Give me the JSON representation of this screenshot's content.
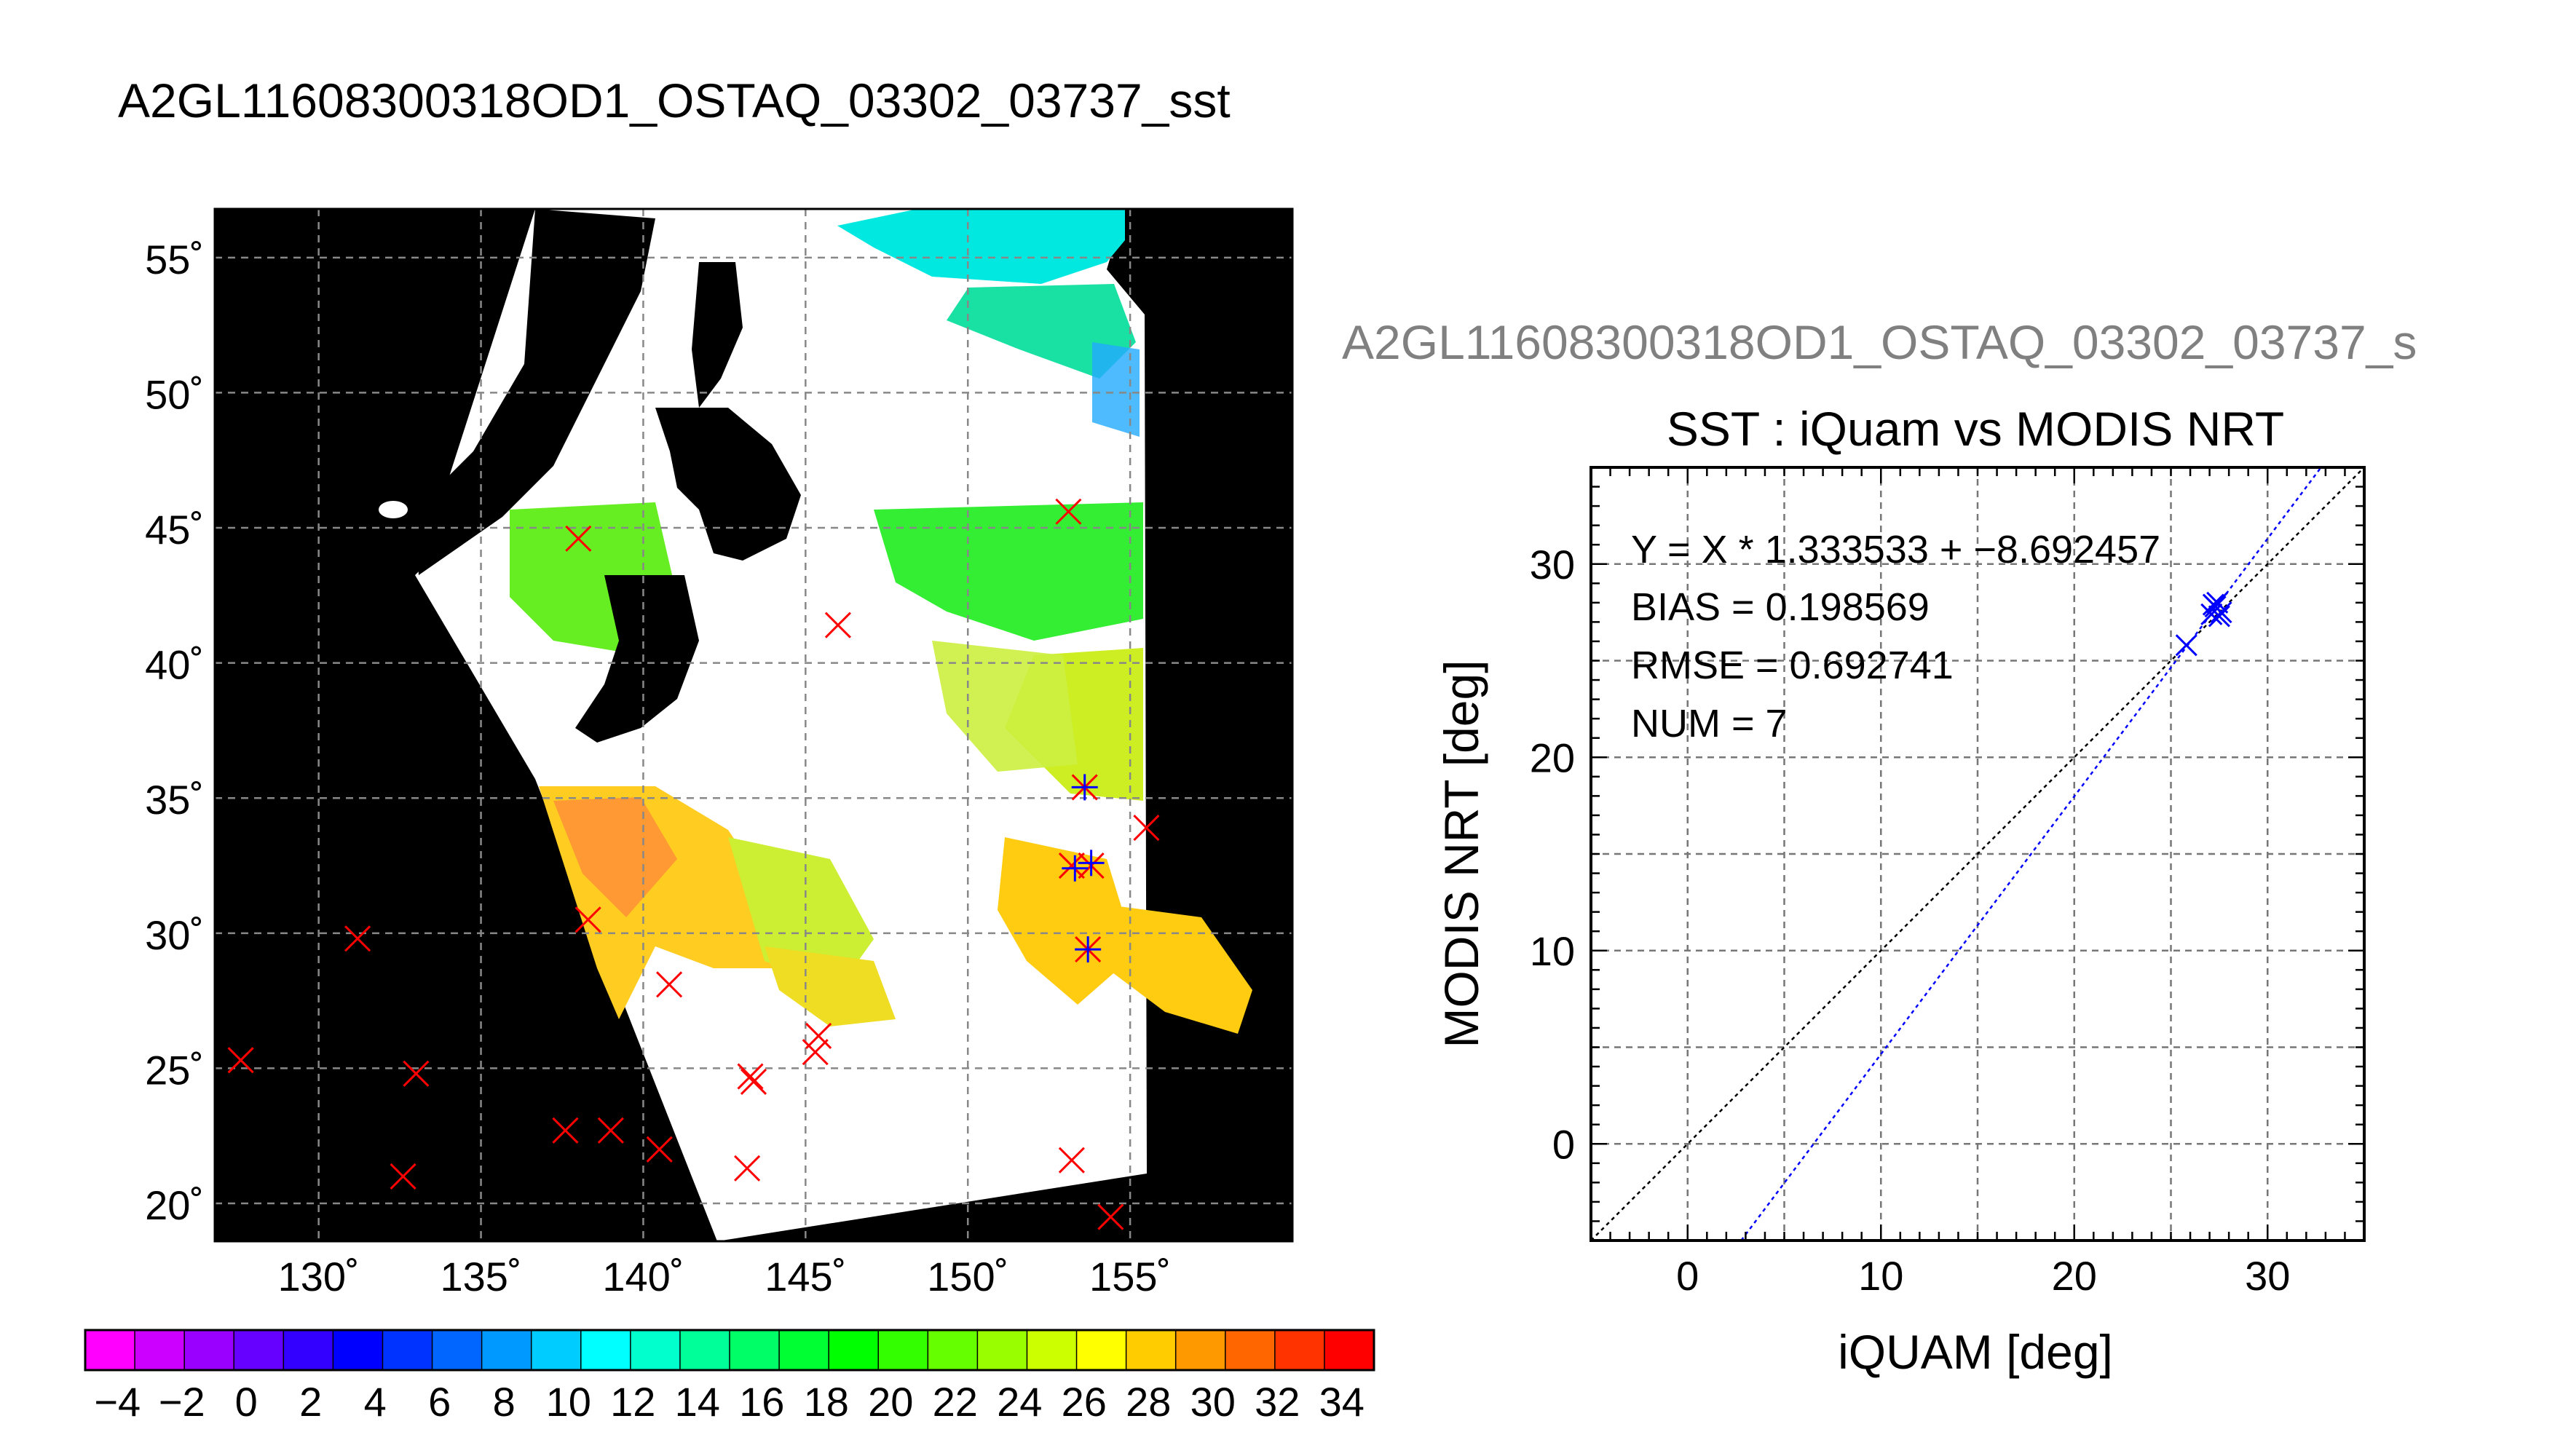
{
  "map_panel": {
    "title": "A2GL11608300318OD1_OSTAQ_03302_03737_sst",
    "lat_ticks": [
      {
        "value": 55,
        "label": "55˚"
      },
      {
        "value": 50,
        "label": "50˚"
      },
      {
        "value": 45,
        "label": "45˚"
      },
      {
        "value": 40,
        "label": "40˚"
      },
      {
        "value": 35,
        "label": "35˚"
      },
      {
        "value": 30,
        "label": "30˚"
      },
      {
        "value": 25,
        "label": "25˚"
      },
      {
        "value": 20,
        "label": "20˚"
      }
    ],
    "lon_ticks": [
      {
        "value": 130,
        "label": "130˚"
      },
      {
        "value": 135,
        "label": "135˚"
      },
      {
        "value": 140,
        "label": "140˚"
      },
      {
        "value": 145,
        "label": "145˚"
      },
      {
        "value": 150,
        "label": "150˚"
      },
      {
        "value": 155,
        "label": "155˚"
      }
    ],
    "lon_range": [
      126.8,
      160.0
    ],
    "lat_range": [
      18.6,
      56.8
    ],
    "colorbar": {
      "range": [
        -5,
        35
      ],
      "tick_labels": [
        "−4",
        "−2",
        "0",
        "2",
        "4",
        "6",
        "8",
        "10",
        "12",
        "14",
        "16",
        "18",
        "20",
        "22",
        "24",
        "26",
        "28",
        "30",
        "32",
        "34"
      ],
      "tick_values": [
        -4,
        -2,
        0,
        2,
        4,
        6,
        8,
        10,
        12,
        14,
        16,
        18,
        20,
        22,
        24,
        26,
        28,
        30,
        32,
        34
      ],
      "colors": [
        "#ff00ff",
        "#cc00ff",
        "#9900ff",
        "#6600ff",
        "#3300ff",
        "#0000ff",
        "#0033ff",
        "#0066ff",
        "#0099ff",
        "#00ccff",
        "#00ffff",
        "#00ffcc",
        "#00ff99",
        "#00ff66",
        "#00ff33",
        "#00ff00",
        "#33ff00",
        "#66ff00",
        "#99ff00",
        "#ccff00",
        "#ffff00",
        "#ffcc00",
        "#ff9900",
        "#ff6600",
        "#ff3300",
        "#ff0000"
      ]
    },
    "colors": {
      "background": "#000000",
      "cloud": "#ffffff",
      "red_marker": "#ff0000",
      "blue_marker": "#0000ff",
      "grid": "#888888"
    }
  },
  "chart_data": {
    "type": "scatter",
    "figure_caption": "A2GL11608300318OD1_OSTAQ_03302_03737_s",
    "title": "SST : iQuam vs MODIS NRT",
    "xlabel": "iQUAM [deg]",
    "ylabel": "MODIS NRT [deg]",
    "xlim": [
      -5,
      35
    ],
    "ylim": [
      -5,
      35
    ],
    "x_ticks": [
      0,
      10,
      20,
      30
    ],
    "y_ticks": [
      0,
      10,
      20,
      30
    ],
    "grid": true,
    "annotations": [
      "Y = X * 1.333533 + −8.692457",
      "BIAS = 0.198569",
      "RMSE = 0.692741",
      "NUM = 7"
    ],
    "series": [
      {
        "values_x": [
          25.8,
          27.1,
          27.3,
          27.4,
          27.6,
          27.2,
          27.5
        ],
        "values_y": [
          25.8,
          27.4,
          27.8,
          28.0,
          27.5,
          27.9,
          27.3
        ],
        "marker": "x",
        "color": "#0000ff"
      }
    ],
    "fit_line": {
      "slope": 1.333533,
      "intercept": -8.692457,
      "color": "#0000ff",
      "style": "dotted"
    },
    "identity_line": {
      "slope": 1,
      "intercept": 0,
      "color": "#000000",
      "style": "dotted"
    }
  }
}
